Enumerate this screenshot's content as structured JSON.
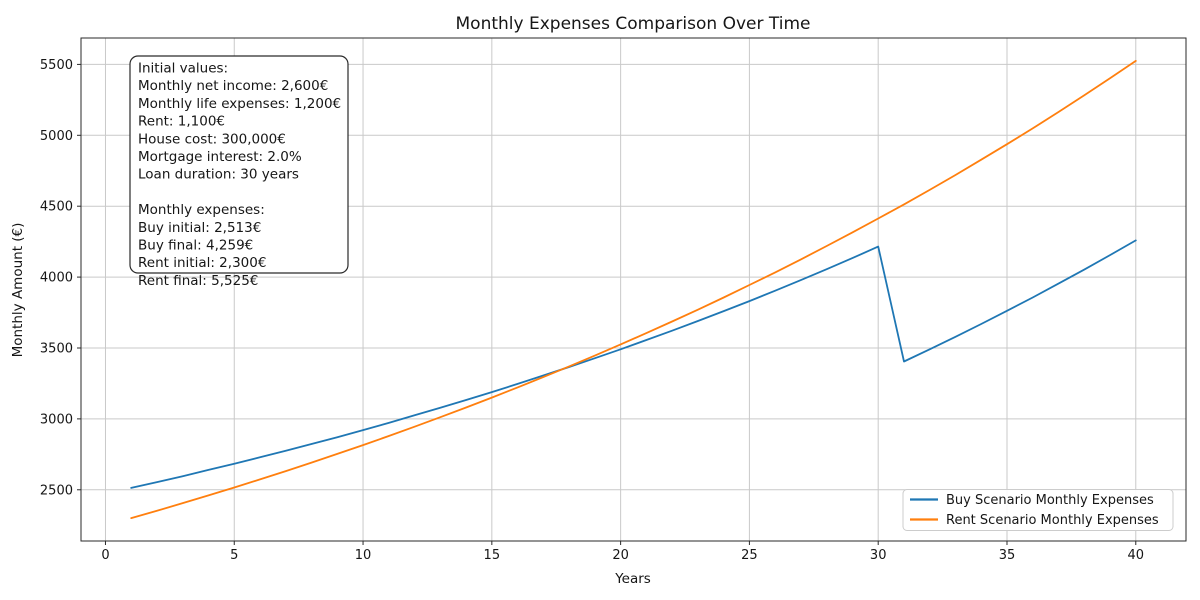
{
  "title": "Monthly Expenses Comparison Over Time",
  "xlabel": "Years",
  "ylabel": "Monthly Amount (€)",
  "annotation": {
    "lines": [
      "Initial values:",
      "Monthly net income: 2,600€",
      "Monthly life expenses: 1,200€",
      "Rent: 1,100€",
      "House cost: 300,000€",
      "Mortgage interest: 2.0%",
      "Loan duration: 30 years",
      "",
      "Monthly expenses:",
      "Buy initial: 2,513€",
      "Buy final: 4,259€",
      "Rent initial: 2,300€",
      "Rent final: 5,525€"
    ]
  },
  "chart_data": {
    "type": "line",
    "x": [
      1,
      2,
      3,
      4,
      5,
      6,
      7,
      8,
      9,
      10,
      11,
      12,
      13,
      14,
      15,
      16,
      17,
      18,
      19,
      20,
      21,
      22,
      23,
      24,
      25,
      26,
      27,
      28,
      29,
      30,
      31,
      32,
      33,
      34,
      35,
      36,
      37,
      38,
      39,
      40
    ],
    "series": [
      {
        "name": "Buy Scenario Monthly Expenses",
        "color": "#1f77b4",
        "values": [
          2513,
          2554,
          2596,
          2640,
          2684,
          2729,
          2775,
          2823,
          2871,
          2921,
          2972,
          3025,
          3078,
          3133,
          3189,
          3247,
          3306,
          3366,
          3428,
          3491,
          3556,
          3622,
          3690,
          3760,
          3831,
          3904,
          3979,
          4056,
          4134,
          4215,
          3405,
          3491,
          3579,
          3669,
          3762,
          3856,
          3954,
          4053,
          4155,
          4259
        ]
      },
      {
        "name": "Rent Scenario Monthly Expenses",
        "color": "#ff7f0e",
        "values": [
          2300,
          2352,
          2406,
          2460,
          2516,
          2573,
          2632,
          2692,
          2753,
          2815,
          2879,
          2945,
          3012,
          3080,
          3150,
          3222,
          3295,
          3370,
          3446,
          3525,
          3605,
          3687,
          3770,
          3856,
          3944,
          4033,
          4125,
          4219,
          4315,
          4413,
          4513,
          4615,
          4720,
          4828,
          4937,
          5049,
          5164,
          5282,
          5402,
          5525
        ]
      }
    ],
    "xticks": [
      0,
      5,
      10,
      15,
      20,
      25,
      30,
      35,
      40
    ],
    "yticks": [
      2500,
      3000,
      3500,
      4000,
      4500,
      5000,
      5500
    ],
    "xlim": [
      -0.95,
      41.95
    ],
    "ylim": [
      2138.75,
      5686.25
    ],
    "grid": true,
    "legend_position": "lower right",
    "grid_color": "#c9c9c9",
    "axis_color": "#2a2a2a",
    "legend_border_color": "#cccccc"
  }
}
